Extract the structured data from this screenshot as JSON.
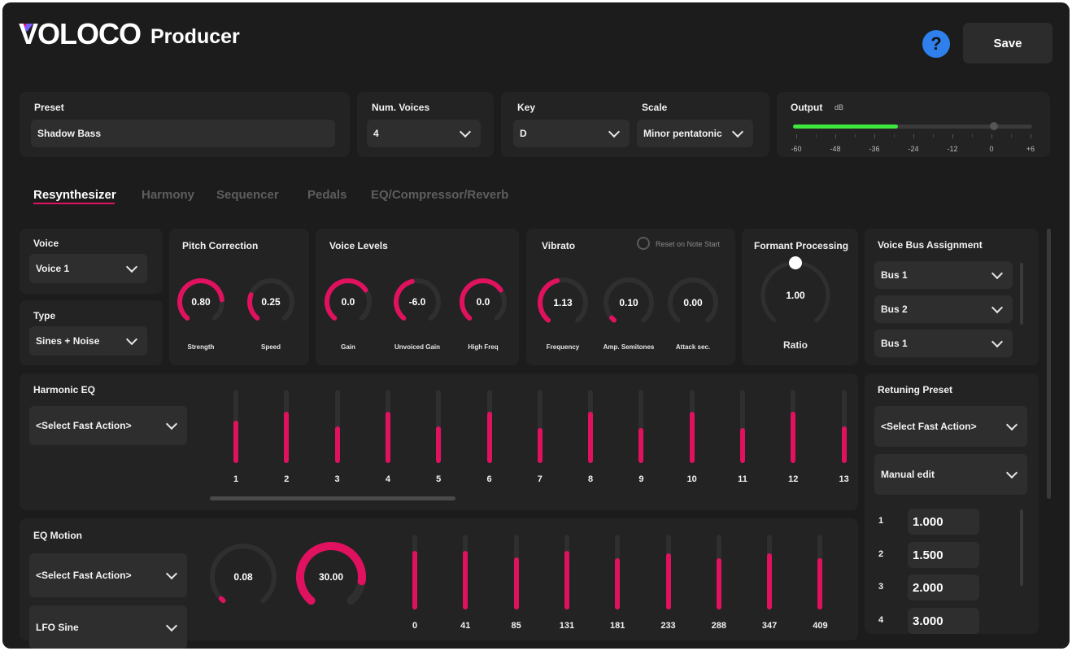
{
  "header": {
    "brand": "VOLOCO",
    "product": "Producer",
    "help_label": "?",
    "save_label": "Save"
  },
  "preset": {
    "label": "Preset",
    "value": "Shadow Bass"
  },
  "voices": {
    "label": "Num. Voices",
    "value": "4"
  },
  "key": {
    "label": "Key",
    "value": "D"
  },
  "scale": {
    "label": "Scale",
    "value": "Minor pentatonic"
  },
  "output": {
    "label": "Output",
    "unit": "dB",
    "ticks": [
      "-60",
      "-48",
      "-36",
      "-24",
      "-12",
      "0",
      "+6"
    ],
    "level_fraction": 0.44,
    "slider_fraction": 0.84
  },
  "tabs": [
    {
      "label": "Resynthesizer",
      "active": true
    },
    {
      "label": "Harmony",
      "active": false
    },
    {
      "label": "Sequencer",
      "active": false
    },
    {
      "label": "Pedals",
      "active": false
    },
    {
      "label": "EQ/Compressor/Reverb",
      "active": false
    }
  ],
  "voice": {
    "label": "Voice",
    "value": "Voice 1"
  },
  "type": {
    "label": "Type",
    "value": "Sines + Noise"
  },
  "pitch": {
    "title": "Pitch Correction",
    "knobs": [
      {
        "value": "0.80",
        "caption": "Strength",
        "fraction": 0.8
      },
      {
        "value": "0.25",
        "caption": "Speed",
        "fraction": 0.25
      }
    ]
  },
  "levels": {
    "title": "Voice Levels",
    "knobs": [
      {
        "value": "0.0",
        "caption": "Gain",
        "fraction": 0.7
      },
      {
        "value": "-6.0",
        "caption": "Unvoiced Gain",
        "fraction": 0.45
      },
      {
        "value": "0.0",
        "caption": "High Freq",
        "fraction": 0.7
      }
    ]
  },
  "vibrato": {
    "title": "Vibrato",
    "reset_label": "Reset on Note Start",
    "knobs": [
      {
        "value": "1.13",
        "caption": "Frequency",
        "fraction": 0.45
      },
      {
        "value": "0.10",
        "caption": "Amp. Semitones",
        "fraction": 0.03
      },
      {
        "value": "0.00",
        "caption": "Attack sec.",
        "fraction": 0.0
      }
    ]
  },
  "formant": {
    "title": "Formant Processing",
    "value": "1.00",
    "caption": "Ratio",
    "fraction": 0.5
  },
  "bus": {
    "title": "Voice Bus Assignment",
    "items": [
      "Bus 1",
      "Bus 2",
      "Bus 1"
    ]
  },
  "harmonic_eq": {
    "title": "Harmonic EQ",
    "action": "<Select Fast Action>",
    "bands": [
      {
        "label": "1",
        "level": 0.58
      },
      {
        "label": "2",
        "level": 0.7
      },
      {
        "label": "3",
        "level": 0.5
      },
      {
        "label": "4",
        "level": 0.7
      },
      {
        "label": "5",
        "level": 0.5
      },
      {
        "label": "6",
        "level": 0.7
      },
      {
        "label": "7",
        "level": 0.48
      },
      {
        "label": "8",
        "level": 0.7
      },
      {
        "label": "9",
        "level": 0.48
      },
      {
        "label": "10",
        "level": 0.7
      },
      {
        "label": "11",
        "level": 0.48
      },
      {
        "label": "12",
        "level": 0.7
      },
      {
        "label": "13",
        "level": 0.5
      }
    ]
  },
  "retune": {
    "title": "Retuning Preset",
    "action": "<Select Fast Action>",
    "mode": "Manual edit",
    "ratios": [
      {
        "index": "1",
        "value": "1.000"
      },
      {
        "index": "2",
        "value": "1.500"
      },
      {
        "index": "3",
        "value": "2.000"
      },
      {
        "index": "4",
        "value": "3.000"
      }
    ]
  },
  "eq_motion": {
    "title": "EQ Motion",
    "action": "<Select Fast Action>",
    "lfo": "LFO Sine",
    "knobs": [
      {
        "value": "0.08",
        "fraction": 0.02
      },
      {
        "value": "30.00",
        "fraction": 0.85
      }
    ],
    "bands": [
      {
        "label": "0",
        "level": 0.78
      },
      {
        "label": "41",
        "level": 0.78
      },
      {
        "label": "85",
        "level": 0.7
      },
      {
        "label": "131",
        "level": 0.78
      },
      {
        "label": "181",
        "level": 0.68
      },
      {
        "label": "233",
        "level": 0.75
      },
      {
        "label": "288",
        "level": 0.68
      },
      {
        "label": "347",
        "level": 0.75
      },
      {
        "label": "409",
        "level": 0.68
      }
    ]
  }
}
